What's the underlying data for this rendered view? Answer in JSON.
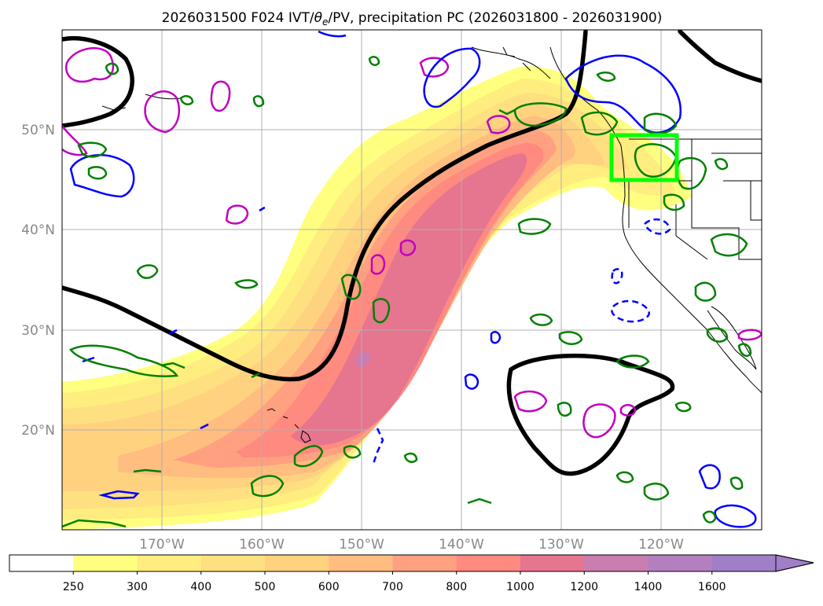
{
  "title": {
    "prefix": "2026031500 F024 IVT/",
    "theta": "θ",
    "theta_sub": "e",
    "suffix": "/PV, precipitation PC (2026031800 - 2026031900)"
  },
  "map": {
    "lat_labels": [
      "50°N",
      "40°N",
      "30°N",
      "20°N"
    ],
    "lon_labels": [
      "170°W",
      "160°W",
      "150°W",
      "140°W",
      "130°W",
      "120°W"
    ]
  },
  "colorbar": {
    "ticks": [
      "250",
      "300",
      "400",
      "500",
      "600",
      "700",
      "800",
      "1000",
      "1200",
      "1400",
      "1600"
    ],
    "colors": [
      "#ffffff",
      "#ffff80",
      "#ffed80",
      "#ffe080",
      "#ffd280",
      "#ffbd80",
      "#ffa080",
      "#ff8a80",
      "#e6758f",
      "#c97db0",
      "#b47fbf",
      "#a07fc8"
    ]
  },
  "colors": {
    "contour_black": "#000000",
    "contour_blue": "#0000ff",
    "contour_magenta": "#c000c0",
    "contour_green": "#008000",
    "box_green": "#00ff00",
    "grid": "#b0b0b0",
    "tick_label": "#888888"
  }
}
